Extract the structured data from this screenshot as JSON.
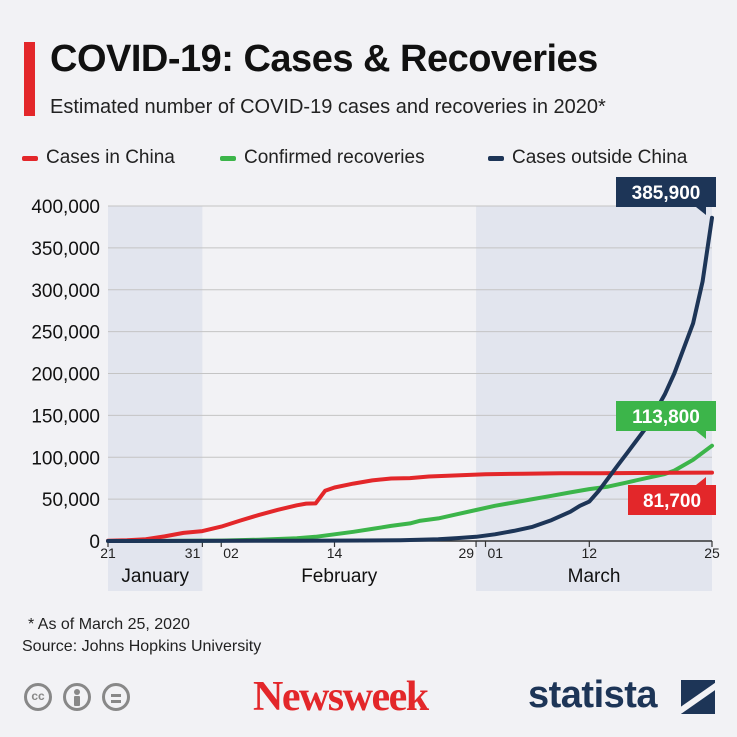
{
  "header": {
    "title": "COVID-19: Cases & Recoveries",
    "subtitle": "Estimated number of COVID-19 cases and recoveries in 2020*"
  },
  "legend": {
    "items": [
      {
        "label": "Cases in China",
        "color": "#e3272a"
      },
      {
        "label": "Confirmed recoveries",
        "color": "#3cb54a"
      },
      {
        "label": "Cases outside China",
        "color": "#1d3557"
      }
    ]
  },
  "chart_data": {
    "type": "line",
    "title": "COVID-19: Cases & Recoveries",
    "subtitle": "Estimated number of COVID-19 cases and recoveries in 2020*",
    "xlabel": "",
    "ylabel": "",
    "ylim": [
      0,
      400000
    ],
    "yticks": [
      "0",
      "50,000",
      "100,000",
      "150,000",
      "200,000",
      "250,000",
      "300,000",
      "350,000",
      "400,000"
    ],
    "xticks": [
      {
        "day": 0,
        "label": "21"
      },
      {
        "day": 10,
        "label": "31"
      },
      {
        "day": 12,
        "label": "02"
      },
      {
        "day": 24,
        "label": "14"
      },
      {
        "day": 39,
        "label": "29"
      },
      {
        "day": 40,
        "label": "01"
      },
      {
        "day": 51,
        "label": "12"
      },
      {
        "day": 64,
        "label": "25"
      }
    ],
    "months": [
      {
        "label": "January",
        "start_day": 0,
        "end_day": 10,
        "shaded": true
      },
      {
        "label": "February",
        "start_day": 10,
        "end_day": 39,
        "shaded": false
      },
      {
        "label": "March",
        "start_day": 39,
        "end_day": 64,
        "shaded": true
      }
    ],
    "grid": true,
    "legend_position": "top",
    "series": [
      {
        "name": "Cases in China",
        "color": "#e3272a",
        "end_label": "81,700",
        "points": [
          [
            0,
            300
          ],
          [
            2,
            800
          ],
          [
            4,
            2100
          ],
          [
            6,
            5500
          ],
          [
            8,
            9700
          ],
          [
            10,
            11800
          ],
          [
            12,
            17200
          ],
          [
            14,
            24300
          ],
          [
            16,
            31200
          ],
          [
            18,
            37200
          ],
          [
            20,
            42600
          ],
          [
            21,
            44700
          ],
          [
            22,
            44900
          ],
          [
            23,
            59900
          ],
          [
            24,
            63900
          ],
          [
            26,
            68500
          ],
          [
            28,
            72400
          ],
          [
            30,
            74600
          ],
          [
            32,
            75100
          ],
          [
            34,
            77000
          ],
          [
            36,
            77800
          ],
          [
            38,
            78800
          ],
          [
            40,
            79800
          ],
          [
            44,
            80400
          ],
          [
            48,
            80800
          ],
          [
            52,
            81000
          ],
          [
            56,
            81200
          ],
          [
            60,
            81500
          ],
          [
            64,
            81700
          ]
        ]
      },
      {
        "name": "Confirmed recoveries",
        "color": "#3cb54a",
        "end_label": "113,800",
        "points": [
          [
            0,
            0
          ],
          [
            4,
            50
          ],
          [
            8,
            200
          ],
          [
            12,
            500
          ],
          [
            16,
            1500
          ],
          [
            20,
            3300
          ],
          [
            22,
            5000
          ],
          [
            24,
            8000
          ],
          [
            26,
            11000
          ],
          [
            28,
            14500
          ],
          [
            30,
            18000
          ],
          [
            32,
            21000
          ],
          [
            33,
            24000
          ],
          [
            35,
            27000
          ],
          [
            37,
            32000
          ],
          [
            39,
            37000
          ],
          [
            41,
            42000
          ],
          [
            43,
            46000
          ],
          [
            45,
            50000
          ],
          [
            47,
            54000
          ],
          [
            49,
            58000
          ],
          [
            51,
            62000
          ],
          [
            53,
            65000
          ],
          [
            55,
            70000
          ],
          [
            57,
            75000
          ],
          [
            59,
            80000
          ],
          [
            60,
            84000
          ],
          [
            62,
            97000
          ],
          [
            64,
            113800
          ]
        ]
      },
      {
        "name": "Cases outside China",
        "color": "#1d3557",
        "end_label": "385,900",
        "points": [
          [
            0,
            0
          ],
          [
            10,
            100
          ],
          [
            20,
            300
          ],
          [
            27,
            600
          ],
          [
            31,
            1000
          ],
          [
            35,
            2000
          ],
          [
            37,
            3500
          ],
          [
            39,
            5000
          ],
          [
            41,
            8000
          ],
          [
            43,
            12000
          ],
          [
            45,
            17000
          ],
          [
            47,
            25000
          ],
          [
            49,
            35000
          ],
          [
            50,
            42000
          ],
          [
            51,
            47000
          ],
          [
            52,
            60000
          ],
          [
            53,
            75000
          ],
          [
            54,
            90000
          ],
          [
            55,
            105000
          ],
          [
            56,
            120000
          ],
          [
            57,
            135000
          ],
          [
            58,
            155000
          ],
          [
            59,
            175000
          ],
          [
            60,
            200000
          ],
          [
            61,
            230000
          ],
          [
            62,
            260000
          ],
          [
            63,
            310000
          ],
          [
            64,
            385900
          ]
        ]
      }
    ]
  },
  "footer": {
    "footnote": "* As of March 25, 2020",
    "source": "Source: Johns Hopkins University",
    "cc_icons": [
      "cc-icon",
      "by-icon",
      "nd-icon"
    ],
    "newsweek": "Newsweek",
    "statista": "statista"
  }
}
